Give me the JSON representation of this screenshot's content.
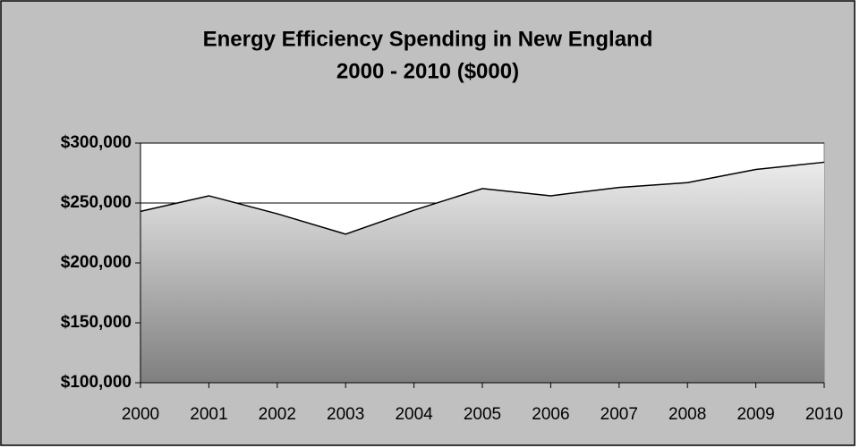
{
  "chart_data": {
    "type": "area",
    "title": [
      "Energy Efficiency Spending in New England",
      "2000 - 2010 ($000)"
    ],
    "categories": [
      "2000",
      "2001",
      "2002",
      "2003",
      "2004",
      "2005",
      "2006",
      "2007",
      "2008",
      "2009",
      "2010"
    ],
    "values": [
      243000,
      256000,
      241000,
      224000,
      244000,
      262000,
      256000,
      263000,
      267000,
      278000,
      284000
    ],
    "color": "#000000",
    "ylim": [
      100000,
      300000
    ],
    "yticks": [
      {
        "value": 100000,
        "label": "$100,000"
      },
      {
        "value": 150000,
        "label": "$150,000"
      },
      {
        "value": 200000,
        "label": "$200,000"
      },
      {
        "value": 250000,
        "label": "$250,000"
      },
      {
        "value": 300000,
        "label": "$300,000"
      }
    ],
    "grid": true
  }
}
